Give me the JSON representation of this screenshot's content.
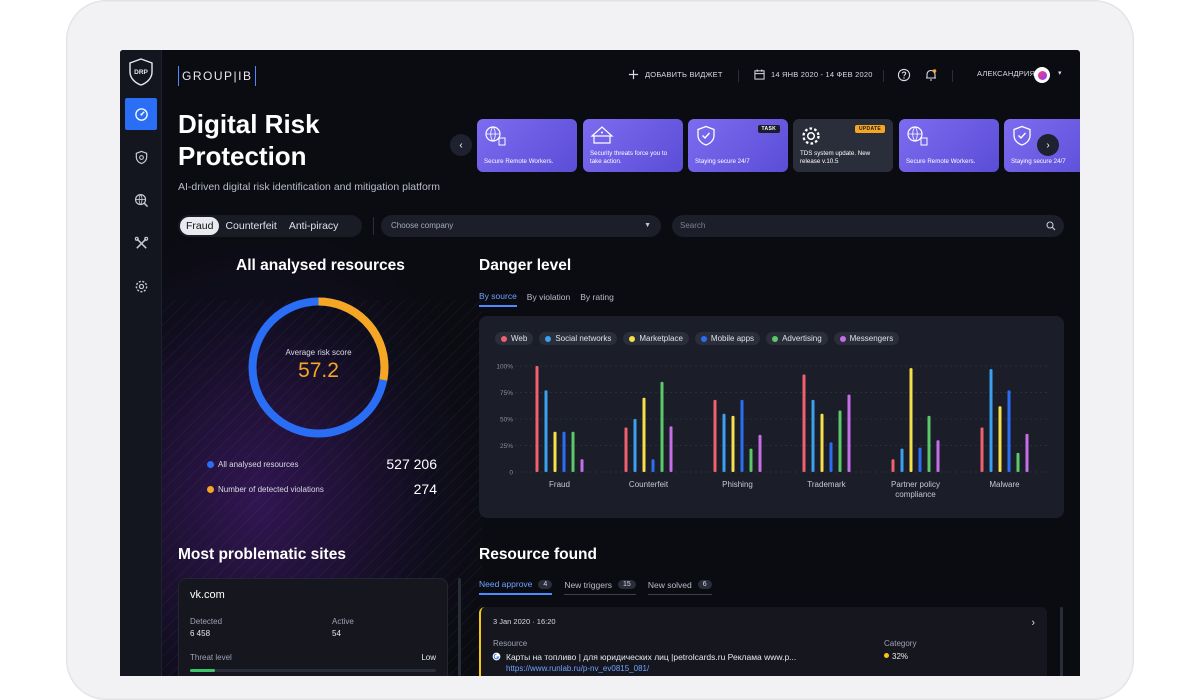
{
  "topbar": {
    "brand": "GROUP|IB",
    "add_widget": "ДОБАВИТЬ ВИДЖЕТ",
    "date_range": "14 ЯНВ 2020 - 14 ФЕВ 2020",
    "user": "АЛЕКСАНДРИЯ"
  },
  "sidebar": {
    "logo": "DRP",
    "items": [
      {
        "icon": "dashboard-icon",
        "active": true
      },
      {
        "icon": "shield-bug-icon",
        "active": false
      },
      {
        "icon": "search-globe-icon",
        "active": false
      },
      {
        "icon": "tools-icon",
        "active": false
      },
      {
        "icon": "settings-icon",
        "active": false
      }
    ]
  },
  "hero": {
    "title": "Digital Risk Protection",
    "subtitle": "AI-driven digital risk identification and mitigation platform"
  },
  "cards": [
    {
      "text": "Secure Remote Workers.",
      "badge": "",
      "style": "purple"
    },
    {
      "text": "Security threats force you to take action.",
      "badge": "",
      "style": "purple"
    },
    {
      "text": "Staying secure 24/7",
      "badge": "TASK",
      "style": "purple"
    },
    {
      "text": "TDS system update. New release v.10.5",
      "badge": "UPDATE",
      "style": "gray"
    },
    {
      "text": "Secure Remote Workers.",
      "badge": "",
      "style": "purple"
    },
    {
      "text": "Staying secure 24/7",
      "badge": "T",
      "style": "purple"
    }
  ],
  "filters": {
    "segments": [
      "Fraud",
      "Counterfeit",
      "Anti-piracy"
    ],
    "active_segment": "Fraud",
    "company_placeholder": "Choose company",
    "search_placeholder": "Search"
  },
  "analysed": {
    "title": "All analysed resources",
    "avg_label": "Average risk score",
    "avg_value": "57.2",
    "ring_fraction": 0.28,
    "rows": [
      {
        "label": "All analysed resources",
        "value": "527 206",
        "color": "#2b6ef6"
      },
      {
        "label": "Number of detected violations",
        "value": "274",
        "color": "#f5a623"
      }
    ]
  },
  "danger": {
    "title": "Danger level",
    "tabs": [
      "By source",
      "By violation",
      "By rating"
    ],
    "active_tab": "By source"
  },
  "chart_data": {
    "type": "bar",
    "categories": [
      "Fraud",
      "Counterfeit",
      "Phishing",
      "Trademark",
      "Partner policy compliance",
      "Malware"
    ],
    "yticks": [
      "100%",
      "75%",
      "50%",
      "25%",
      "0"
    ],
    "ylim": [
      0,
      100
    ],
    "series": [
      {
        "name": "Web",
        "color": "#f0606e",
        "values": [
          100,
          42,
          68,
          92,
          12,
          42
        ]
      },
      {
        "name": "Social networks",
        "color": "#3aa0f0",
        "values": [
          77,
          50,
          55,
          68,
          22,
          97
        ]
      },
      {
        "name": "Marketplace",
        "color": "#f5e04a",
        "values": [
          38,
          70,
          53,
          55,
          98,
          62
        ]
      },
      {
        "name": "Mobile apps",
        "color": "#2b6ef6",
        "values": [
          38,
          12,
          68,
          28,
          23,
          77
        ]
      },
      {
        "name": "Advertising",
        "color": "#5bc96a",
        "values": [
          38,
          85,
          22,
          58,
          53,
          18
        ]
      },
      {
        "name": "Messengers",
        "color": "#c56ee8",
        "values": [
          12,
          43,
          35,
          73,
          30,
          36
        ]
      }
    ]
  },
  "problematic": {
    "title": "Most problematic sites",
    "site": "vk.com",
    "detected_label": "Detected",
    "detected_value": "6 458",
    "active_label": "Active",
    "active_value": "54",
    "threat_label": "Threat level",
    "threat_value": "Low",
    "threat_fraction": 0.1
  },
  "resource": {
    "title": "Resource found",
    "tabs": [
      {
        "label": "Need approve",
        "count": "4",
        "active": true
      },
      {
        "label": "New triggers",
        "count": "15",
        "active": false
      },
      {
        "label": "New solved",
        "count": "6",
        "active": false
      }
    ],
    "item": {
      "date": "3 Jan 2020 · 16:20",
      "resource_label": "Resource",
      "resource_text": "Карты на топливо | для юридических лиц |petrolcards.ru Реклама www.p...",
      "link": "https://www.runlab.ru/p-nv_ev0815_081/",
      "category_label": "Category",
      "category_value": "32%",
      "category_color": "#f5c518"
    }
  }
}
